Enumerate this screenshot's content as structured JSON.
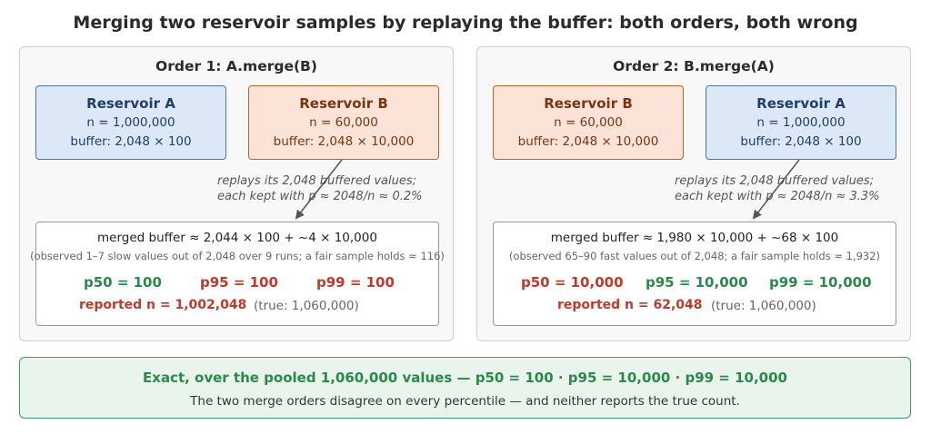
{
  "title": "Merging two reservoir samples by replaying the buffer: both orders, both wrong",
  "panels": [
    {
      "title": "Order 1: A.merge(B)",
      "left_box": {
        "name": "Reservoir A",
        "n": "n = 1,000,000",
        "buffer": "buffer: 2,048 × 100"
      },
      "right_box": {
        "name": "Reservoir B",
        "n": "n = 60,000",
        "buffer": "buffer: 2,048 × 10,000"
      },
      "note_line1": "replays its 2,048 buffered values;",
      "note_line2": "each kept with p ≈ 2048/n ≈ 0.2%",
      "merged_line": "merged buffer ≈ 2,044 × 100 + ~4 × 10,000",
      "observed": "(observed 1–7 slow values out of 2,048 over 9 runs; a fair sample holds ≈ 116)",
      "p50": "p50 = 100",
      "p95": "p95 = 100",
      "p99": "p99 = 100",
      "reported": "reported n = 1,002,048",
      "true_count": "(true: 1,060,000)"
    },
    {
      "title": "Order 2: B.merge(A)",
      "left_box": {
        "name": "Reservoir B",
        "n": "n = 60,000",
        "buffer": "buffer: 2,048 × 10,000"
      },
      "right_box": {
        "name": "Reservoir A",
        "n": "n = 1,000,000",
        "buffer": "buffer: 2,048 × 100"
      },
      "note_line1": "replays its 2,048 buffered values;",
      "note_line2": "each kept with p ≈ 2048/n ≈ 3.3%",
      "merged_line": "merged buffer ≈ 1,980 × 10,000 + ~68 × 100",
      "observed": "(observed 65–90 fast values out of 2,048; a fair sample holds ≈ 1,932)",
      "p50": "p50 = 10,000",
      "p95": "p95 = 10,000",
      "p99": "p99 = 10,000",
      "reported": "reported n = 62,048",
      "true_count": "(true: 1,060,000)"
    }
  ],
  "summary": {
    "exact": "Exact, over the pooled 1,060,000 values — p50 = 100 · p95 = 10,000 · p99 = 10,000",
    "note": "The two merge orders disagree on every percentile — and neither reports the true count."
  },
  "colors": {
    "reservoir_a": "#dce8f6",
    "reservoir_b": "#fbe3d7",
    "correct": "#2a8a4a",
    "wrong": "#c0392b",
    "summary_bg": "#e9f4ec"
  }
}
